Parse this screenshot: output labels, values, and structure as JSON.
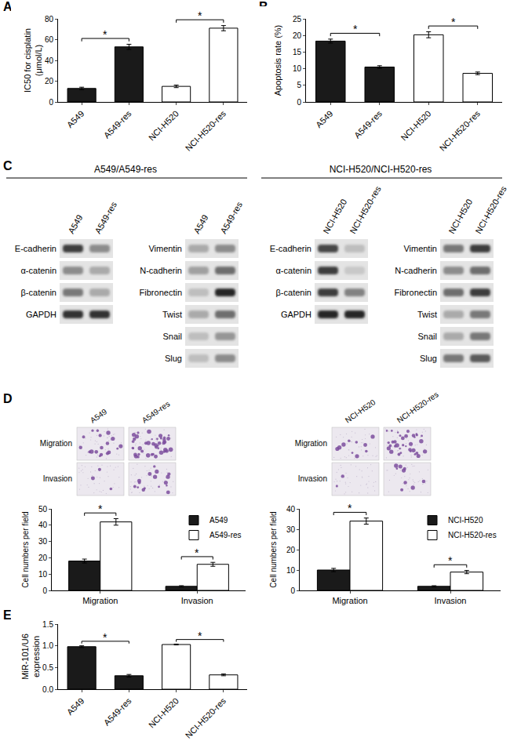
{
  "panel_labels": [
    "A",
    "B",
    "C",
    "D",
    "E"
  ],
  "chart_data": [
    {
      "type": "bar",
      "y_label": "IC50 for cisplatin\n(μmol/L)",
      "categories": [
        "A549",
        "A549-res",
        "NCI-H520",
        "NCI-H520-res"
      ],
      "values": [
        13,
        53,
        15,
        71
      ],
      "errors": [
        1.2,
        2.5,
        1.2,
        2.5
      ],
      "colors": [
        "#1a1a1a",
        "#1a1a1a",
        "#ffffff",
        "#ffffff"
      ],
      "ylim": [
        0,
        80
      ],
      "yticks": [
        0,
        20,
        40,
        60,
        80
      ],
      "grid": false,
      "significance": [
        {
          "from": "A549",
          "to": "A549-res",
          "label": "*"
        },
        {
          "from": "NCI-H520",
          "to": "NCI-H520-res",
          "label": "*"
        }
      ]
    },
    {
      "type": "bar",
      "y_label": "Apoptosis rate (%)",
      "categories": [
        "A549",
        "A549-res",
        "NCI-H520",
        "NCI-H520-res"
      ],
      "values": [
        18.3,
        10.5,
        20.2,
        8.6
      ],
      "errors": [
        0.6,
        0.4,
        0.9,
        0.4
      ],
      "colors": [
        "#1a1a1a",
        "#1a1a1a",
        "#ffffff",
        "#ffffff"
      ],
      "ylim": [
        0,
        25
      ],
      "yticks": [
        0,
        5,
        10,
        15,
        20,
        25
      ],
      "grid": false,
      "significance": [
        {
          "from": "A549",
          "to": "A549-res",
          "label": "*"
        },
        {
          "from": "NCI-H520",
          "to": "NCI-H520-res",
          "label": "*"
        }
      ]
    },
    {
      "type": "bar",
      "y_label": "Cell numbers per field",
      "categories": [
        "Migration",
        "Invasion"
      ],
      "series": [
        {
          "name": "A549",
          "color": "#1a1a1a",
          "values": [
            18,
            2.5
          ],
          "errors": [
            1.2,
            0.4
          ]
        },
        {
          "name": "A549-res",
          "color": "#ffffff",
          "values": [
            42,
            16
          ],
          "errors": [
            2,
            1.2
          ]
        }
      ],
      "ylim": [
        0,
        50
      ],
      "yticks": [
        0,
        10,
        20,
        30,
        40,
        50
      ],
      "grid": false,
      "legend": "top right",
      "significance": [
        {
          "category": "Migration",
          "label": "*"
        },
        {
          "category": "Invasion",
          "label": "*"
        }
      ]
    },
    {
      "type": "bar",
      "y_label": "Cell numbers per field",
      "categories": [
        "Migration",
        "Invasion"
      ],
      "series": [
        {
          "name": "NCI-H520",
          "color": "#1a1a1a",
          "values": [
            10,
            2
          ],
          "errors": [
            0.8,
            0.3
          ]
        },
        {
          "name": "NCI-H520-res",
          "color": "#ffffff",
          "values": [
            34,
            9
          ],
          "errors": [
            1.5,
            0.8
          ]
        }
      ],
      "ylim": [
        0,
        40
      ],
      "yticks": [
        0,
        10,
        20,
        30,
        40
      ],
      "grid": false,
      "legend": "top right",
      "significance": [
        {
          "category": "Migration",
          "label": "*"
        },
        {
          "category": "Invasion",
          "label": "*"
        }
      ]
    },
    {
      "type": "bar",
      "y_label": "MiR-101/U6\nexpression",
      "categories": [
        "A549",
        "A549-res",
        "NCI-H520",
        "NCI-H520-res"
      ],
      "values": [
        0.98,
        0.31,
        1.03,
        0.33
      ],
      "errors": [
        0.02,
        0.03,
        0.01,
        0.02
      ],
      "colors": [
        "#1a1a1a",
        "#1a1a1a",
        "#ffffff",
        "#ffffff"
      ],
      "ylim": [
        0,
        1.5
      ],
      "yticks": [
        {
          "value": 0,
          "label": "0.0"
        },
        0.5,
        {
          "value": 1,
          "label": "1.0"
        },
        1.5
      ],
      "grid": false,
      "significance": [
        {
          "from": "A549",
          "to": "A549-res",
          "label": "*"
        },
        {
          "from": "NCI-H520",
          "to": "NCI-H520-res",
          "label": "*"
        }
      ]
    }
  ],
  "western_blots": [
    {
      "header": "A549/A549-res",
      "columns": [
        {
          "lanes": [
            "A549",
            "A549-res"
          ],
          "rows": [
            {
              "protein": "E-cadherin",
              "intensity": [
                0.85,
                0.45
              ]
            },
            {
              "protein": "α-catenin",
              "intensity": [
                0.45,
                0.3
              ]
            },
            {
              "protein": "β-catenin",
              "intensity": [
                0.55,
                0.3
              ]
            },
            {
              "protein": "GAPDH",
              "intensity": [
                0.9,
                0.9
              ]
            }
          ]
        },
        {
          "lanes": [
            "A549",
            "A549-res"
          ],
          "rows": [
            {
              "protein": "Vimentin",
              "intensity": [
                0.3,
                0.45
              ]
            },
            {
              "protein": "N-cadherin",
              "intensity": [
                0.35,
                0.6
              ]
            },
            {
              "protein": "Fibronectin",
              "intensity": [
                0.2,
                0.95
              ]
            },
            {
              "protein": "Twist",
              "intensity": [
                0.3,
                0.6
              ]
            },
            {
              "protein": "Snail",
              "intensity": [
                0.2,
                0.4
              ]
            },
            {
              "protein": "Slug",
              "intensity": [
                0.2,
                0.45
              ]
            }
          ]
        }
      ]
    },
    {
      "header": "NCI-H520/NCI-H520-res",
      "columns": [
        {
          "lanes": [
            "NCI-H520",
            "NCI-H520-res"
          ],
          "rows": [
            {
              "protein": "E-cadherin",
              "intensity": [
                0.8,
                0.2
              ]
            },
            {
              "protein": "α-catenin",
              "intensity": [
                0.85,
                0.15
              ]
            },
            {
              "protein": "β-catenin",
              "intensity": [
                0.85,
                0.5
              ]
            },
            {
              "protein": "GAPDH",
              "intensity": [
                0.95,
                0.95
              ]
            }
          ]
        },
        {
          "lanes": [
            "NCI-H520",
            "NCI-H520-res"
          ],
          "rows": [
            {
              "protein": "Vimentin",
              "intensity": [
                0.55,
                0.85
              ]
            },
            {
              "protein": "N-cadherin",
              "intensity": [
                0.45,
                0.6
              ]
            },
            {
              "protein": "Fibronectin",
              "intensity": [
                0.6,
                0.85
              ]
            },
            {
              "protein": "Twist",
              "intensity": [
                0.3,
                0.55
              ]
            },
            {
              "protein": "Snail",
              "intensity": [
                0.3,
                0.55
              ]
            },
            {
              "protein": "Slug",
              "intensity": [
                0.55,
                0.7
              ]
            }
          ]
        }
      ]
    }
  ],
  "micrograph_panels": [
    {
      "lanes": [
        "A549",
        "A549-res"
      ],
      "rows": [
        "Migration",
        "Invasion"
      ]
    },
    {
      "lanes": [
        "NCI-H520",
        "NCI-H520-res"
      ],
      "rows": [
        "Migration",
        "Invasion"
      ]
    }
  ]
}
